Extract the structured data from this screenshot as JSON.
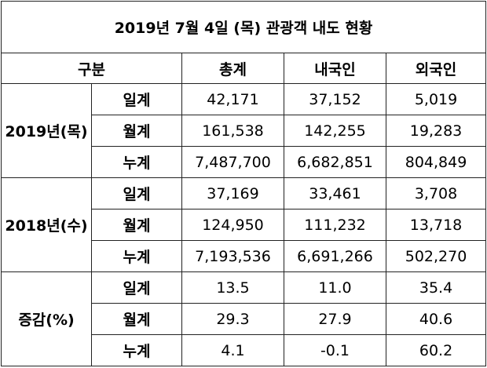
{
  "title": "2019년 7월 4일 (목) 관광객 내도 현황",
  "header": [
    "구분",
    "총계",
    "내국인",
    "외국인"
  ],
  "groups": [
    {
      "label": "2019년(목)",
      "rows": [
        {
          "label": "일계",
          "values": [
            "42,171",
            "37,152",
            "5,019"
          ]
        },
        {
          "label": "월계",
          "values": [
            "161,538",
            "142,255",
            "19,283"
          ]
        },
        {
          "label": "누계",
          "values": [
            "7,487,700",
            "6,682,851",
            "804,849"
          ]
        }
      ]
    },
    {
      "label": "2018년(수)",
      "rows": [
        {
          "label": "일계",
          "values": [
            "37,169",
            "33,461",
            "3,708"
          ]
        },
        {
          "label": "월계",
          "values": [
            "124,950",
            "111,232",
            "13,718"
          ]
        },
        {
          "label": "누계",
          "values": [
            "7,193,536",
            "6,691,266",
            "502,270"
          ]
        }
      ]
    },
    {
      "label": "증감(%)",
      "rows": [
        {
          "label": "일계",
          "values": [
            "13.5",
            "11.0",
            "35.4"
          ]
        },
        {
          "label": "월계",
          "values": [
            "29.3",
            "27.9",
            "40.6"
          ]
        },
        {
          "label": "누계",
          "values": [
            "4.1",
            "-0.1",
            "60.2"
          ]
        }
      ]
    }
  ]
}
